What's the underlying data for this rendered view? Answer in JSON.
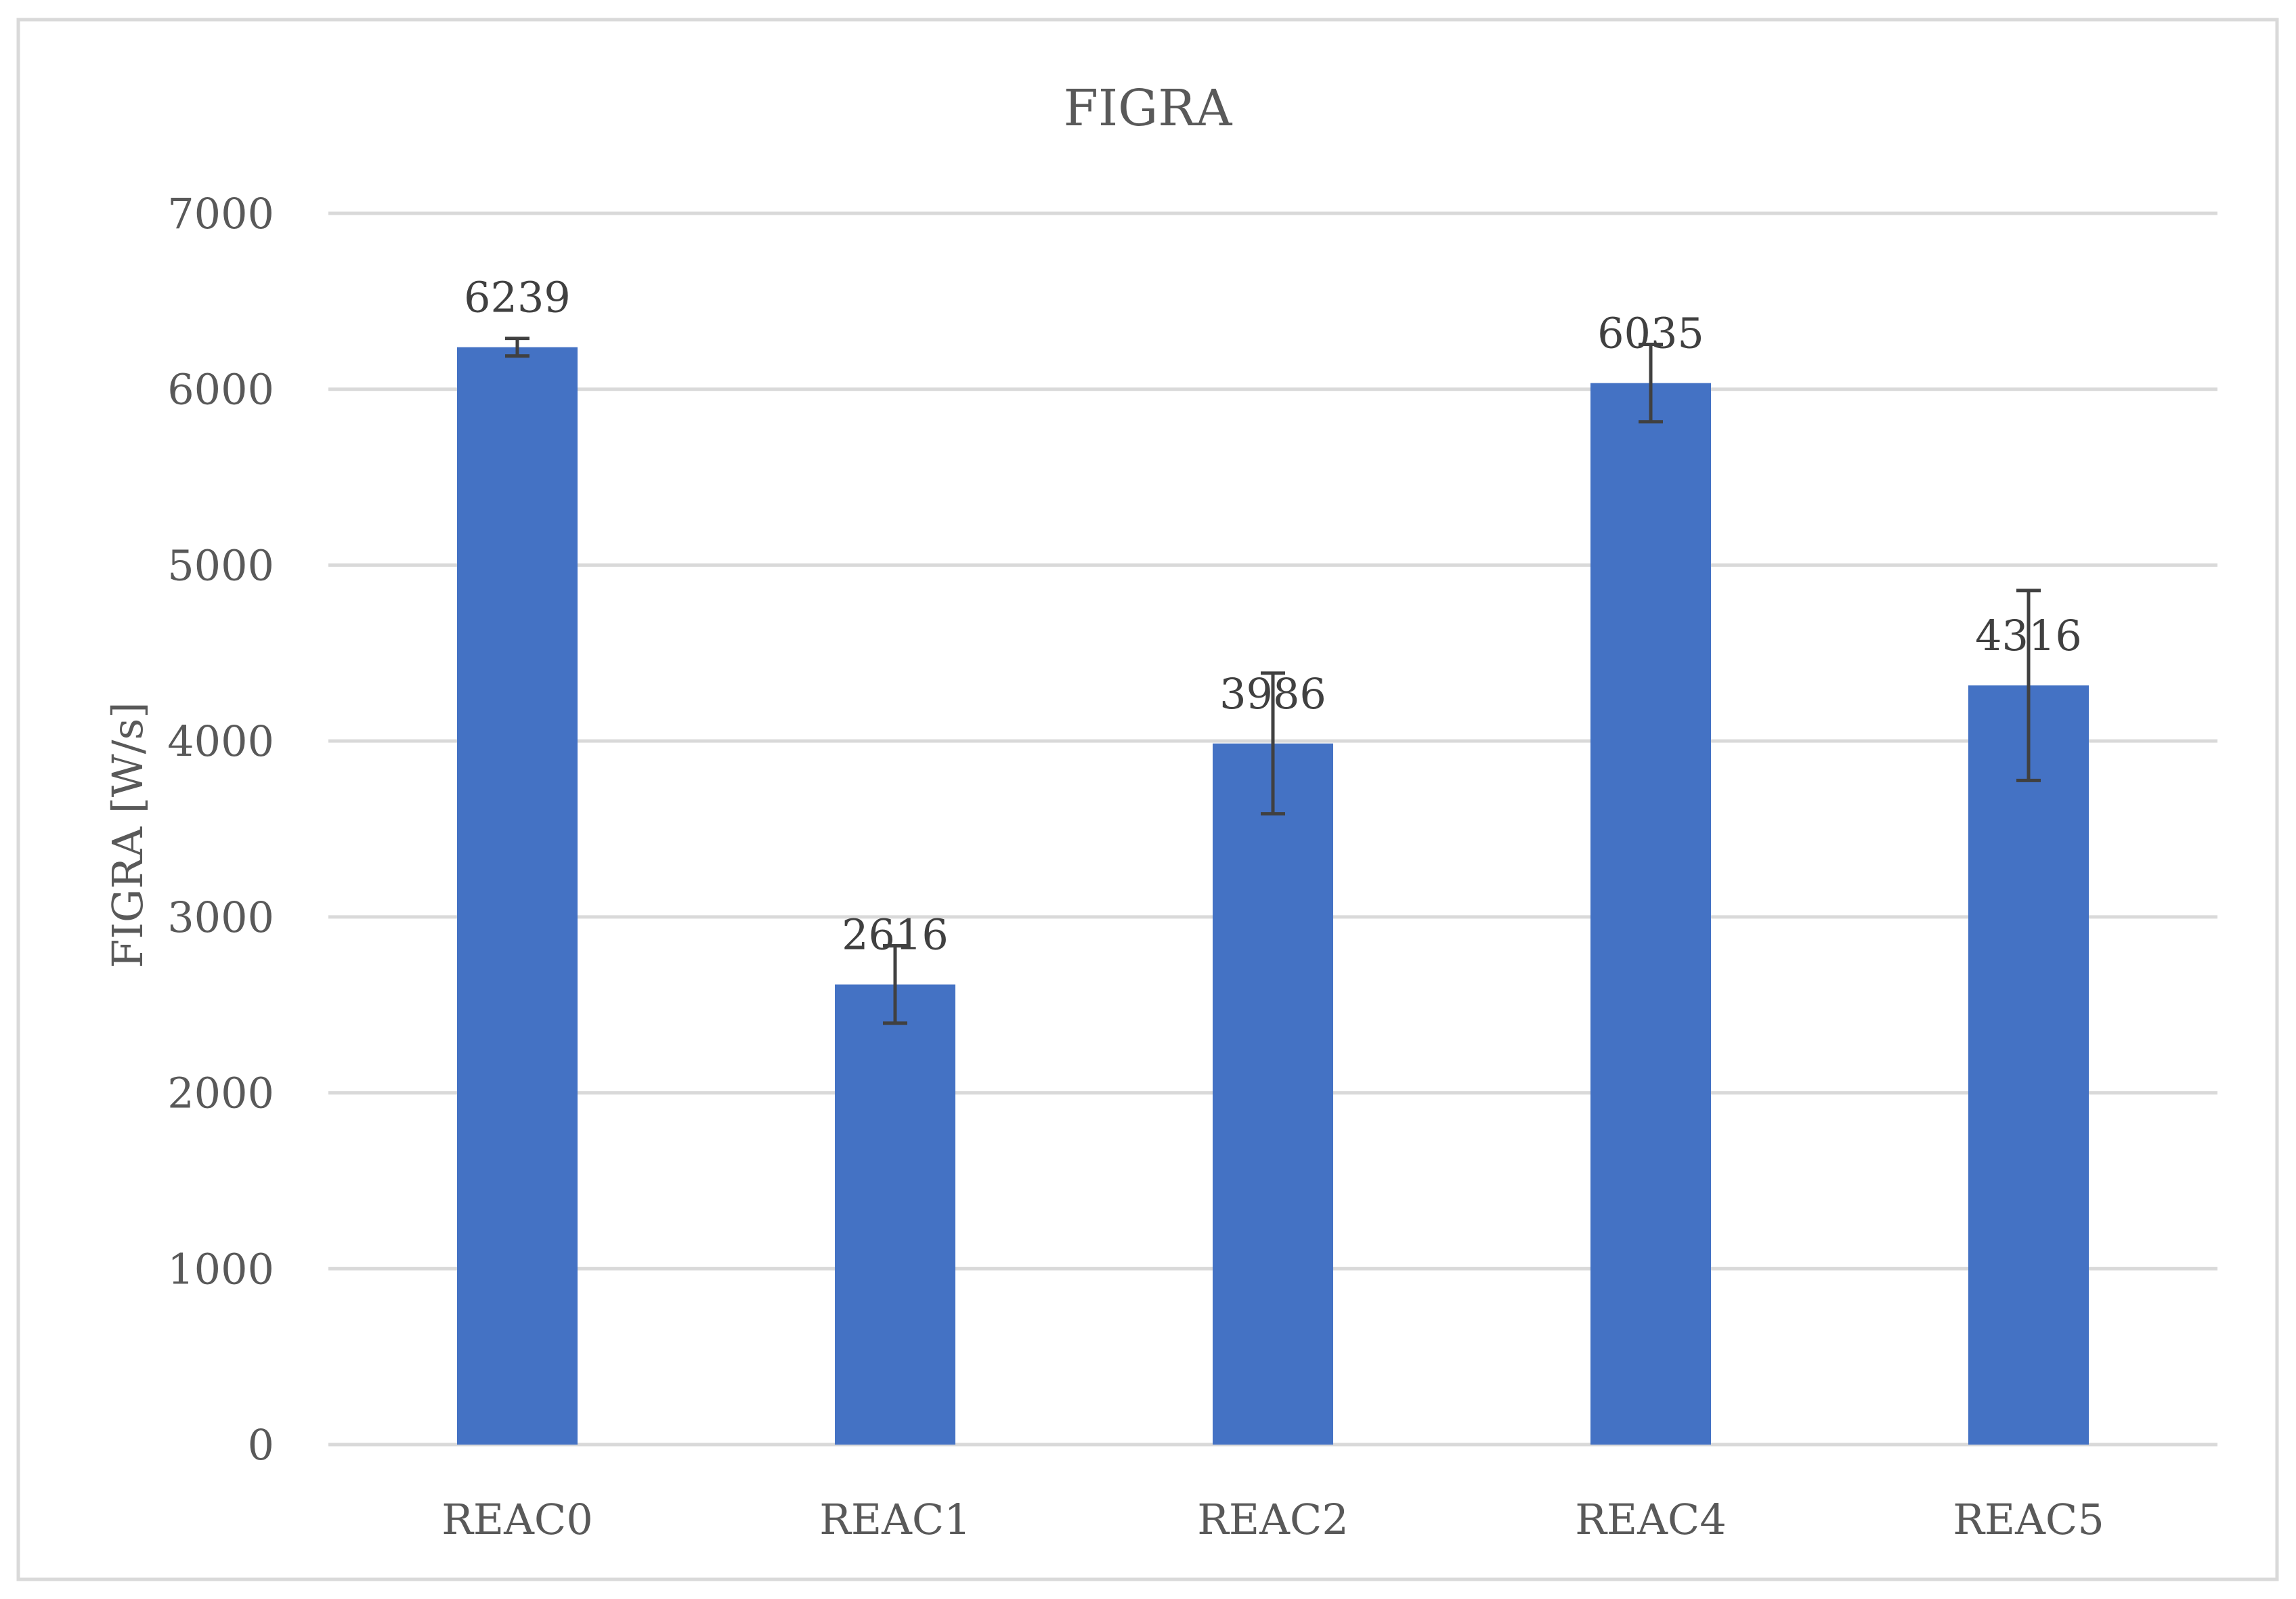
{
  "chart_data": {
    "type": "bar",
    "title": "FIGRA",
    "xlabel": "",
    "ylabel": "FIGRA [W/s]",
    "ylim": [
      0,
      7000
    ],
    "yticks": [
      0,
      1000,
      2000,
      3000,
      4000,
      5000,
      6000,
      7000
    ],
    "grid": true,
    "legend": "none",
    "categories": [
      "REAC0",
      "REAC1",
      "REAC2",
      "REAC4",
      "REAC5"
    ],
    "series": [
      {
        "values": [
          6239,
          2616,
          3986,
          6035,
          4316
        ],
        "error": [
          50,
          220,
          400,
          220,
          540
        ],
        "data_labels": [
          "6239",
          "2616",
          "3986",
          "6035",
          "4316"
        ]
      }
    ],
    "colors": {
      "bar": "#4472c4",
      "gridline": "#d9d9d9",
      "error_bar": "#404040",
      "border": "#d9d9d9"
    }
  }
}
